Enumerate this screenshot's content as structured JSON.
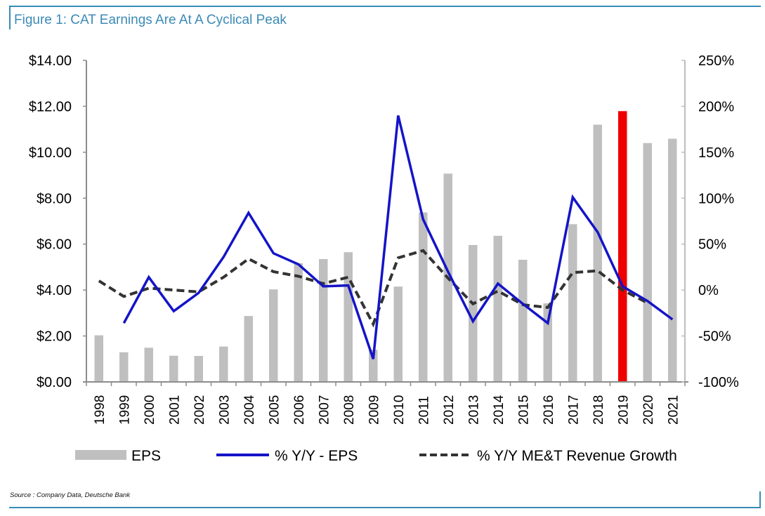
{
  "figure": {
    "title": "Figure 1: CAT Earnings Are At A Cyclical Peak",
    "source": "Source : Company Data, Deutsche Bank"
  },
  "colors": {
    "accent": "#3b8ab5",
    "eps_bar": "#bfbfbf",
    "highlight_bar": "#ee0000",
    "eps_yoy_line": "#1414c8",
    "revenue_line": "#333333",
    "axis": "#8c8c8c"
  },
  "chart_data": {
    "type": "bar",
    "title": "Figure 1: CAT Earnings Are At A Cyclical Peak",
    "xlabel": "",
    "ylabel": "",
    "categories": [
      "1998",
      "1999",
      "2000",
      "2001",
      "2002",
      "2003",
      "2004",
      "2005",
      "2006",
      "2007",
      "2008",
      "2009",
      "2010",
      "2011",
      "2012",
      "2013",
      "2014",
      "2015",
      "2016",
      "2017",
      "2018",
      "2019",
      "2020",
      "2021"
    ],
    "highlight_category": "2019",
    "y_left": {
      "range": [
        0,
        14
      ],
      "ticks": [
        0,
        2,
        4,
        6,
        8,
        10,
        12,
        14
      ],
      "tick_labels": [
        "$0.00",
        "$2.00",
        "$4.00",
        "$6.00",
        "$8.00",
        "$10.00",
        "$12.00",
        "$14.00"
      ]
    },
    "y_right": {
      "range": [
        -100,
        250
      ],
      "ticks": [
        -100,
        -50,
        0,
        50,
        100,
        150,
        200,
        250
      ],
      "tick_labels": [
        "-100%",
        "-50%",
        "0%",
        "50%",
        "100%",
        "150%",
        "200%",
        "250%"
      ]
    },
    "grid": false,
    "legend_position": "bottom",
    "series": [
      {
        "name": "EPS",
        "type": "bar",
        "axis": "left",
        "values": [
          2.03,
          1.29,
          1.49,
          1.14,
          1.13,
          1.54,
          2.87,
          4.03,
          5.17,
          5.35,
          5.65,
          1.4,
          4.15,
          7.38,
          9.07,
          5.96,
          6.36,
          5.32,
          3.42,
          6.87,
          11.2,
          11.79,
          10.4,
          10.59
        ]
      },
      {
        "name": "% Y/Y - EPS",
        "type": "line",
        "axis": "right",
        "style": "solid",
        "values": [
          null,
          -36,
          14,
          -23,
          -3,
          36,
          84,
          40,
          28,
          4,
          5,
          -75,
          190,
          77,
          20,
          -34,
          7,
          -15,
          -36,
          101,
          63,
          4,
          -12,
          -32
        ]
      },
      {
        "name": "% Y/Y ME&T Revenue Growth",
        "type": "line",
        "axis": "right",
        "style": "dashed",
        "values": [
          10,
          -7,
          2,
          0,
          -2,
          14,
          34,
          20,
          15,
          7,
          14,
          -37,
          35,
          43,
          13,
          -15,
          -1,
          -16,
          -19,
          19,
          21,
          0,
          -14,
          null
        ]
      }
    ]
  }
}
